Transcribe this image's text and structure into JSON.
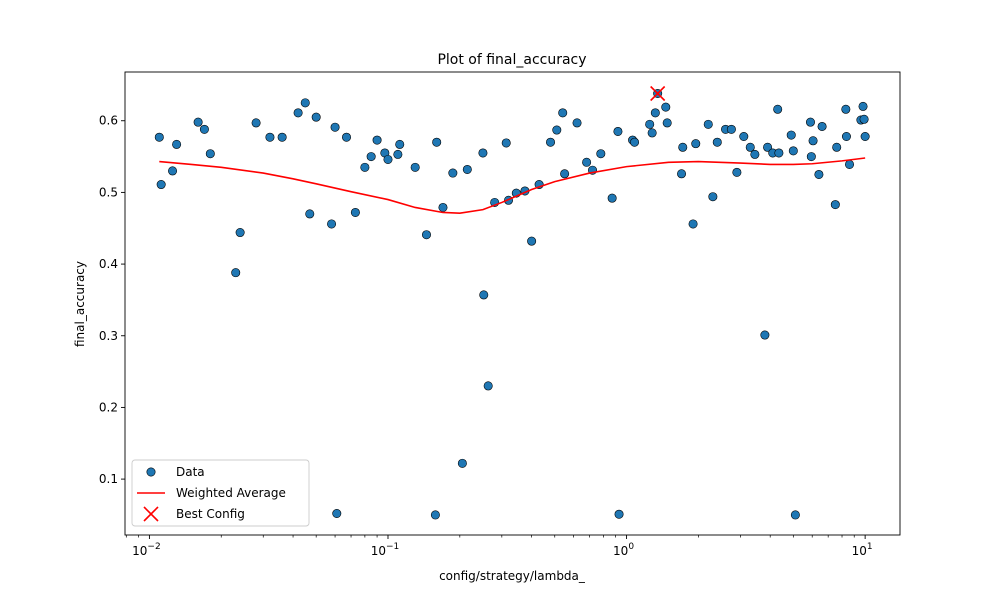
{
  "chart_data": {
    "type": "scatter",
    "title": "Plot of final_accuracy",
    "xlabel": "config/strategy/lambda_",
    "ylabel": "final_accuracy",
    "xscale": "log",
    "xlim": [
      0.0079,
      14.0
    ],
    "ylim": [
      0.022,
      0.668
    ],
    "x_ticks": [
      {
        "value": 0.01,
        "base": "10",
        "exp": "−2"
      },
      {
        "value": 0.1,
        "base": "10",
        "exp": "−1"
      },
      {
        "value": 1,
        "base": "10",
        "exp": "0"
      },
      {
        "value": 10,
        "base": "10",
        "exp": "1"
      }
    ],
    "y_ticks": [
      {
        "value": 0.1,
        "label": "0.1"
      },
      {
        "value": 0.2,
        "label": "0.2"
      },
      {
        "value": 0.3,
        "label": "0.3"
      },
      {
        "value": 0.4,
        "label": "0.4"
      },
      {
        "value": 0.5,
        "label": "0.5"
      },
      {
        "value": 0.6,
        "label": "0.6"
      }
    ],
    "grid": false,
    "legend_position": "lower-left",
    "series": [
      {
        "name": "Data",
        "kind": "scatter",
        "color": "#1f77b4",
        "edgecolor": "#000000",
        "points": [
          [
            0.011,
            0.577
          ],
          [
            0.0112,
            0.511
          ],
          [
            0.0125,
            0.53
          ],
          [
            0.013,
            0.567
          ],
          [
            0.016,
            0.598
          ],
          [
            0.017,
            0.588
          ],
          [
            0.018,
            0.554
          ],
          [
            0.023,
            0.388
          ],
          [
            0.024,
            0.444
          ],
          [
            0.028,
            0.597
          ],
          [
            0.032,
            0.577
          ],
          [
            0.036,
            0.577
          ],
          [
            0.042,
            0.611
          ],
          [
            0.045,
            0.625
          ],
          [
            0.047,
            0.47
          ],
          [
            0.05,
            0.605
          ],
          [
            0.058,
            0.456
          ],
          [
            0.06,
            0.591
          ],
          [
            0.061,
            0.052
          ],
          [
            0.067,
            0.577
          ],
          [
            0.073,
            0.472
          ],
          [
            0.08,
            0.535
          ],
          [
            0.085,
            0.55
          ],
          [
            0.09,
            0.573
          ],
          [
            0.097,
            0.555
          ],
          [
            0.1,
            0.546
          ],
          [
            0.11,
            0.553
          ],
          [
            0.112,
            0.567
          ],
          [
            0.13,
            0.535
          ],
          [
            0.145,
            0.441
          ],
          [
            0.158,
            0.05
          ],
          [
            0.16,
            0.57
          ],
          [
            0.17,
            0.479
          ],
          [
            0.187,
            0.527
          ],
          [
            0.205,
            0.122
          ],
          [
            0.215,
            0.532
          ],
          [
            0.25,
            0.555
          ],
          [
            0.252,
            0.357
          ],
          [
            0.263,
            0.23
          ],
          [
            0.28,
            0.486
          ],
          [
            0.313,
            0.569
          ],
          [
            0.32,
            0.489
          ],
          [
            0.345,
            0.499
          ],
          [
            0.375,
            0.502
          ],
          [
            0.4,
            0.432
          ],
          [
            0.43,
            0.511
          ],
          [
            0.48,
            0.57
          ],
          [
            0.51,
            0.587
          ],
          [
            0.54,
            0.611
          ],
          [
            0.55,
            0.526
          ],
          [
            0.62,
            0.597
          ],
          [
            0.68,
            0.542
          ],
          [
            0.72,
            0.531
          ],
          [
            0.78,
            0.554
          ],
          [
            0.87,
            0.492
          ],
          [
            0.92,
            0.585
          ],
          [
            0.93,
            0.051
          ],
          [
            1.06,
            0.573
          ],
          [
            1.08,
            0.57
          ],
          [
            1.25,
            0.595
          ],
          [
            1.28,
            0.583
          ],
          [
            1.32,
            0.611
          ],
          [
            1.35,
            0.638
          ],
          [
            1.46,
            0.619
          ],
          [
            1.48,
            0.597
          ],
          [
            1.7,
            0.526
          ],
          [
            1.72,
            0.563
          ],
          [
            1.9,
            0.456
          ],
          [
            1.95,
            0.568
          ],
          [
            2.2,
            0.595
          ],
          [
            2.3,
            0.494
          ],
          [
            2.4,
            0.57
          ],
          [
            2.6,
            0.588
          ],
          [
            2.75,
            0.588
          ],
          [
            2.9,
            0.528
          ],
          [
            3.1,
            0.578
          ],
          [
            3.3,
            0.563
          ],
          [
            3.45,
            0.553
          ],
          [
            3.8,
            0.301
          ],
          [
            3.9,
            0.563
          ],
          [
            4.1,
            0.555
          ],
          [
            4.3,
            0.616
          ],
          [
            4.35,
            0.555
          ],
          [
            4.9,
            0.58
          ],
          [
            5.0,
            0.558
          ],
          [
            5.1,
            0.05
          ],
          [
            5.9,
            0.598
          ],
          [
            5.95,
            0.55
          ],
          [
            6.05,
            0.572
          ],
          [
            6.4,
            0.525
          ],
          [
            6.6,
            0.592
          ],
          [
            7.5,
            0.483
          ],
          [
            7.6,
            0.563
          ],
          [
            8.3,
            0.616
          ],
          [
            8.35,
            0.578
          ],
          [
            8.6,
            0.539
          ],
          [
            9.6,
            0.601
          ],
          [
            9.8,
            0.62
          ],
          [
            9.9,
            0.602
          ],
          [
            10.0,
            0.578
          ]
        ]
      },
      {
        "name": "Weighted Average",
        "kind": "line",
        "color": "#ff0000",
        "points": [
          [
            0.011,
            0.543
          ],
          [
            0.015,
            0.539
          ],
          [
            0.02,
            0.535
          ],
          [
            0.03,
            0.527
          ],
          [
            0.04,
            0.519
          ],
          [
            0.05,
            0.512
          ],
          [
            0.07,
            0.501
          ],
          [
            0.1,
            0.49
          ],
          [
            0.13,
            0.479
          ],
          [
            0.17,
            0.472
          ],
          [
            0.2,
            0.471
          ],
          [
            0.25,
            0.476
          ],
          [
            0.3,
            0.486
          ],
          [
            0.4,
            0.504
          ],
          [
            0.5,
            0.515
          ],
          [
            0.7,
            0.527
          ],
          [
            1.0,
            0.536
          ],
          [
            1.5,
            0.542
          ],
          [
            2.0,
            0.543
          ],
          [
            3.0,
            0.541
          ],
          [
            4.0,
            0.539
          ],
          [
            5.0,
            0.539
          ],
          [
            6.0,
            0.54
          ],
          [
            8.0,
            0.544
          ],
          [
            10.0,
            0.548
          ]
        ]
      },
      {
        "name": "Best Config",
        "kind": "marker-x",
        "color": "#ff0000",
        "points": [
          [
            1.35,
            0.638
          ]
        ]
      }
    ]
  }
}
